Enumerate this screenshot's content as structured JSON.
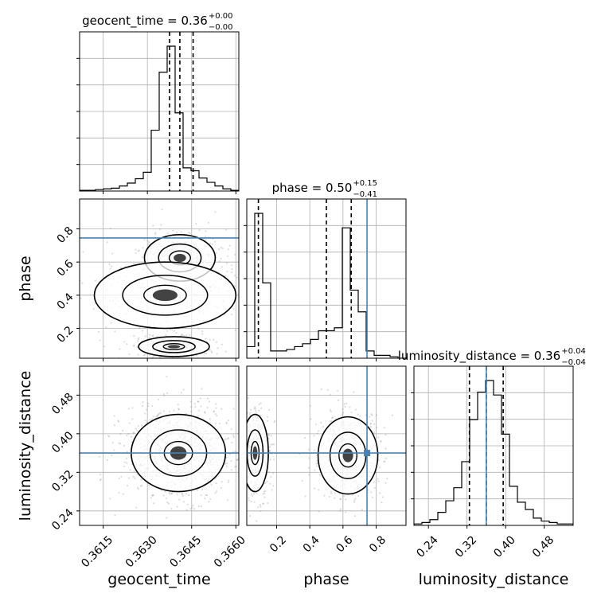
{
  "chart_data": {
    "type": "corner",
    "parameters": [
      "geocent_time",
      "phase",
      "luminosity_distance"
    ],
    "truths": {
      "geocent_time": null,
      "phase": 0.745,
      "luminosity_distance": 0.36
    },
    "titles": [
      {
        "param": "geocent_time",
        "base": "geocent_time = 0.36",
        "sup": "+0.00",
        "sub": "−0.00"
      },
      {
        "param": "phase",
        "base": "phase = 0.50",
        "sup": "+0.15",
        "sub": "−0.41"
      },
      {
        "param": "luminosity_distance",
        "base": "luminosity_distance = 0.36",
        "sup": "+0.04",
        "sub": "−0.04"
      }
    ],
    "axes": {
      "geocent_time": {
        "label": "geocent_time",
        "range": [
          0.3607,
          0.3661
        ],
        "ticks": [
          0.3615,
          0.363,
          0.3645,
          0.366
        ],
        "tick_labels": [
          "0.3615",
          "0.3630",
          "0.3645",
          "0.3660"
        ]
      },
      "phase": {
        "label": "phase",
        "range": [
          0.02,
          0.98
        ],
        "ticks": [
          0.2,
          0.4,
          0.6,
          0.8
        ],
        "tick_labels": [
          "0.2",
          "0.4",
          "0.6",
          "0.8"
        ]
      },
      "luminosity_distance": {
        "label": "luminosity_distance",
        "range": [
          0.21,
          0.54
        ],
        "ticks": [
          0.24,
          0.32,
          0.4,
          0.48
        ],
        "tick_labels": [
          "0.24",
          "0.32",
          "0.40",
          "0.48"
        ]
      }
    },
    "histograms": {
      "geocent_time": {
        "bin_edges": [
          0.3607,
          0.36097,
          0.36124,
          0.36151,
          0.36178,
          0.36205,
          0.36232,
          0.36259,
          0.36286,
          0.36313,
          0.3634,
          0.36367,
          0.36394,
          0.36421,
          0.36448,
          0.36475,
          0.36502,
          0.36529,
          0.36556,
          0.36583,
          0.3661
        ],
        "counts": [
          0.005,
          0.005,
          0.01,
          0.015,
          0.02,
          0.035,
          0.055,
          0.085,
          0.13,
          0.42,
          0.82,
          1.0,
          0.54,
          0.16,
          0.14,
          0.09,
          0.06,
          0.035,
          0.015,
          0.005
        ],
        "quantiles": [
          0.36375,
          0.3641,
          0.36455
        ]
      },
      "phase": {
        "bin_edges": [
          0.02,
          0.068,
          0.116,
          0.164,
          0.212,
          0.26,
          0.308,
          0.356,
          0.404,
          0.452,
          0.5,
          0.548,
          0.596,
          0.644,
          0.692,
          0.74,
          0.788,
          0.836,
          0.884,
          0.932,
          0.98
        ],
        "counts": [
          0.08,
          1.0,
          0.52,
          0.05,
          0.05,
          0.06,
          0.08,
          0.1,
          0.13,
          0.19,
          0.19,
          0.21,
          0.9,
          0.47,
          0.32,
          0.05,
          0.02,
          0.02,
          0.01,
          0.0
        ],
        "quantiles": [
          0.09,
          0.5,
          0.65
        ]
      },
      "luminosity_distance": {
        "bin_edges": [
          0.21,
          0.2265,
          0.243,
          0.2595,
          0.276,
          0.2925,
          0.309,
          0.3255,
          0.342,
          0.3585,
          0.375,
          0.3915,
          0.408,
          0.4245,
          0.441,
          0.4575,
          0.474,
          0.4905,
          0.507,
          0.5235,
          0.54
        ],
        "counts": [
          0.01,
          0.02,
          0.04,
          0.09,
          0.17,
          0.26,
          0.44,
          0.73,
          0.92,
          1.0,
          0.9,
          0.63,
          0.27,
          0.16,
          0.11,
          0.05,
          0.03,
          0.02,
          0.01,
          0.01
        ],
        "quantiles": [
          0.325,
          0.36,
          0.395
        ]
      }
    },
    "joint_distributions": [
      {
        "x": "geocent_time",
        "y": "phase",
        "modes": [
          {
            "center": [
              0.3641,
              0.625
            ],
            "spread": [
              0.0006,
              0.07
            ],
            "weight": 0.45
          },
          {
            "center": [
              0.3639,
              0.09
            ],
            "spread": [
              0.0006,
              0.03
            ],
            "weight": 0.3
          },
          {
            "center": [
              0.3636,
              0.4
            ],
            "spread": [
              0.0012,
              0.1
            ],
            "weight": 0.25
          }
        ]
      },
      {
        "x": "geocent_time",
        "y": "luminosity_distance",
        "modes": [
          {
            "center": [
              0.36405,
              0.36
            ],
            "spread": [
              0.0008,
              0.04
            ],
            "weight": 1.0
          }
        ]
      },
      {
        "x": "phase",
        "y": "luminosity_distance",
        "modes": [
          {
            "center": [
              0.07,
              0.36
            ],
            "spread": [
              0.04,
              0.04
            ],
            "weight": 0.5
          },
          {
            "center": [
              0.63,
              0.355
            ],
            "spread": [
              0.09,
              0.04
            ],
            "weight": 0.5
          }
        ]
      }
    ],
    "colors": {
      "truth": "#4682b4",
      "line": "#000000",
      "grid": "#b0b0b0",
      "points": "#808080"
    },
    "grid": true
  }
}
